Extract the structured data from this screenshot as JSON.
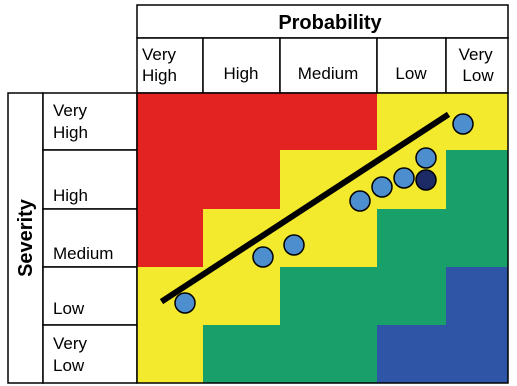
{
  "header": {
    "probability_title": "Probability",
    "severity_title": "Severity"
  },
  "probability_levels": [
    [
      "Very",
      "High"
    ],
    [
      "High"
    ],
    [
      "Medium"
    ],
    [
      "Low"
    ],
    [
      "Very",
      "Low"
    ]
  ],
  "severity_levels": [
    [
      "Very",
      "High"
    ],
    [
      "High"
    ],
    [
      "Medium"
    ],
    [
      "Low"
    ],
    [
      "Very",
      "Low"
    ]
  ],
  "colors": {
    "red": "#e32322",
    "yellow": "#f3e92d",
    "green": "#19a06a",
    "blue": "#2f56a6",
    "point_fill": "#4d8fce",
    "point_dark": "#1c2a66",
    "line": "#000000"
  },
  "zone_grid": [
    [
      "red",
      "red",
      "red",
      "yellow",
      "yellow"
    ],
    [
      "red",
      "red",
      "yellow",
      "yellow",
      "green"
    ],
    [
      "red",
      "yellow",
      "yellow",
      "green",
      "green"
    ],
    [
      "yellow",
      "yellow",
      "green",
      "green",
      "blue"
    ],
    [
      "yellow",
      "green",
      "green",
      "blue",
      "blue"
    ]
  ]
}
